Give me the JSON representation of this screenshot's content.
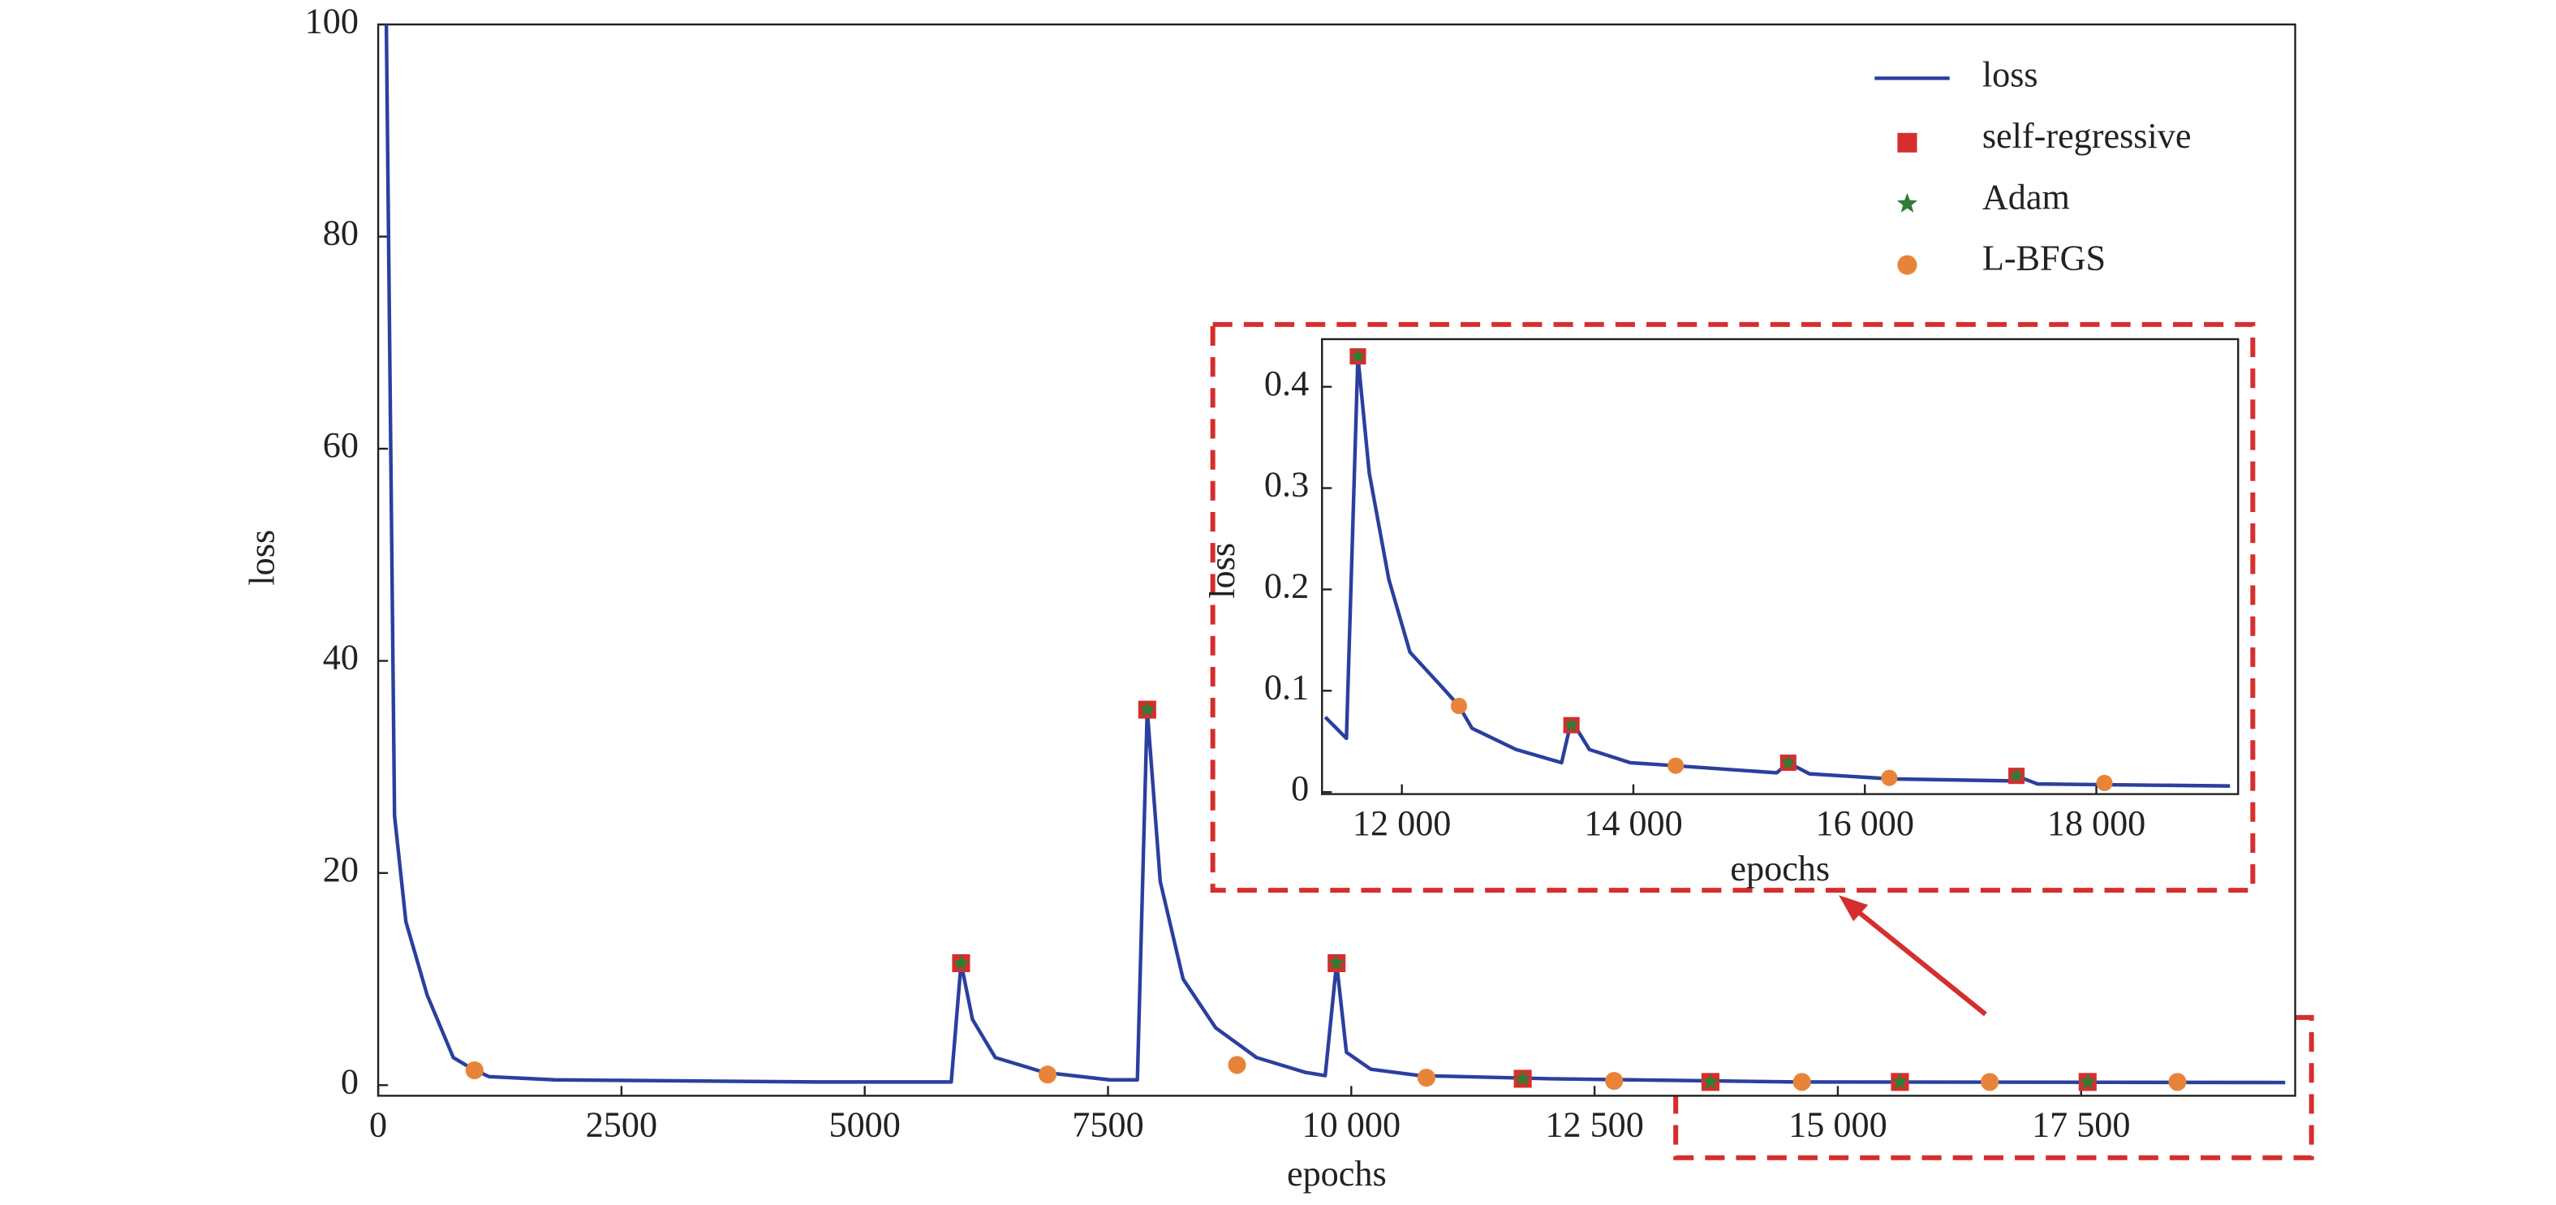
{
  "chart_data": [
    {
      "type": "line",
      "x_label": "epochs",
      "y_label": "loss",
      "xlim": [
        0,
        19700
      ],
      "ylim": [
        -1,
        100
      ],
      "xticks": [
        0,
        2500,
        5000,
        7500,
        {
          "value": 10000,
          "label": "10 000"
        },
        {
          "value": 12500,
          "label": "12 500"
        },
        {
          "value": 15000,
          "label": "15 000"
        },
        {
          "value": 17500,
          "label": "17 500"
        }
      ],
      "yticks": [
        0,
        20,
        40,
        60,
        80,
        100
      ],
      "legend": "upper right",
      "series": [
        {
          "name": "loss",
          "color": "#2b3f9e",
          "marker": "line",
          "x": [
            84,
            168,
            285,
            503,
            772,
            973,
            1141,
            1812,
            4500,
            5889,
            5990,
            6107,
            6342,
            6846,
            7517,
            7802,
            7903,
            8037,
            8272,
            8607,
            9027,
            9530,
            9732,
            9849,
            9950,
            10201,
            10705,
            12047,
            12886,
            14564,
            19597
          ],
          "values": [
            100,
            25.4,
            15.4,
            8.5,
            2.6,
            1.5,
            0.8,
            0.5,
            0.3,
            0.3,
            11.5,
            6.2,
            2.6,
            1.2,
            0.5,
            0.5,
            35.4,
            19.2,
            10,
            5.4,
            2.6,
            1.2,
            0.9,
            11.5,
            3.1,
            1.5,
            0.9,
            0.6,
            0.5,
            0.3,
            0.25
          ]
        },
        {
          "name": "self-regressive",
          "color": "#d62e2e",
          "marker": "square",
          "x": [
            5990,
            7903,
            9849,
            11762,
            13691,
            15638,
            17567
          ],
          "values": [
            11.5,
            35.4,
            11.5,
            0.6,
            0.3,
            0.3,
            0.3
          ]
        },
        {
          "name": "Adam",
          "color": "#2e7d32",
          "marker": "star",
          "x": [
            5990,
            7903,
            9849,
            11762,
            13691,
            15638,
            17567
          ],
          "values": [
            11.5,
            35.4,
            11.5,
            0.6,
            0.3,
            0.3,
            0.3
          ]
        },
        {
          "name": "L-BFGS",
          "color": "#e8843a",
          "marker": "circle",
          "x": [
            990,
            6879,
            8826,
            10772,
            12701,
            14631,
            16561,
            18490
          ],
          "values": [
            1.4,
            1.0,
            1.9,
            0.7,
            0.4,
            0.3,
            0.3,
            0.3
          ]
        }
      ]
    },
    {
      "type": "line",
      "x_label": "epochs",
      "y_label": "loss",
      "xlim": [
        11310,
        19225
      ],
      "ylim": [
        -0.002,
        0.447
      ],
      "xticks": [
        {
          "value": 12000,
          "label": "12 000"
        },
        {
          "value": 14000,
          "label": "14 000"
        },
        {
          "value": 16000,
          "label": "16 000"
        },
        {
          "value": 18000,
          "label": "18 000"
        }
      ],
      "yticks": [
        0,
        0.1,
        0.2,
        0.3,
        0.4
      ],
      "series": [
        {
          "color": "#2b3f9e",
          "marker": "line",
          "x": [
            11338,
            11521,
            11620,
            11718,
            11887,
            12070,
            12352,
            12493,
            12606,
            12986,
            13380,
            13465,
            13620,
            13972,
            14366,
            15239,
            15338,
            15521,
            16225,
            17282,
            17310,
            17493,
            19155
          ],
          "values": [
            0.074,
            0.053,
            0.43,
            0.315,
            0.21,
            0.138,
            0.103,
            0.085,
            0.063,
            0.042,
            0.029,
            0.071,
            0.042,
            0.029,
            0.026,
            0.019,
            0.029,
            0.018,
            0.013,
            0.011,
            0.016,
            0.008,
            0.006
          ]
        },
        {
          "color": "#d62e2e",
          "marker": "square",
          "x": [
            11620,
            13465,
            15338,
            17310
          ],
          "values": [
            0.43,
            0.066,
            0.029,
            0.016
          ]
        },
        {
          "color": "#2e7d32",
          "marker": "star",
          "x": [
            11620,
            13465,
            15338,
            17310
          ],
          "values": [
            0.43,
            0.066,
            0.029,
            0.016
          ]
        },
        {
          "color": "#e8843a",
          "marker": "circle",
          "x": [
            12493,
            14366,
            16211,
            18070
          ],
          "values": [
            0.085,
            0.026,
            0.014,
            0.009
          ]
        }
      ]
    }
  ]
}
